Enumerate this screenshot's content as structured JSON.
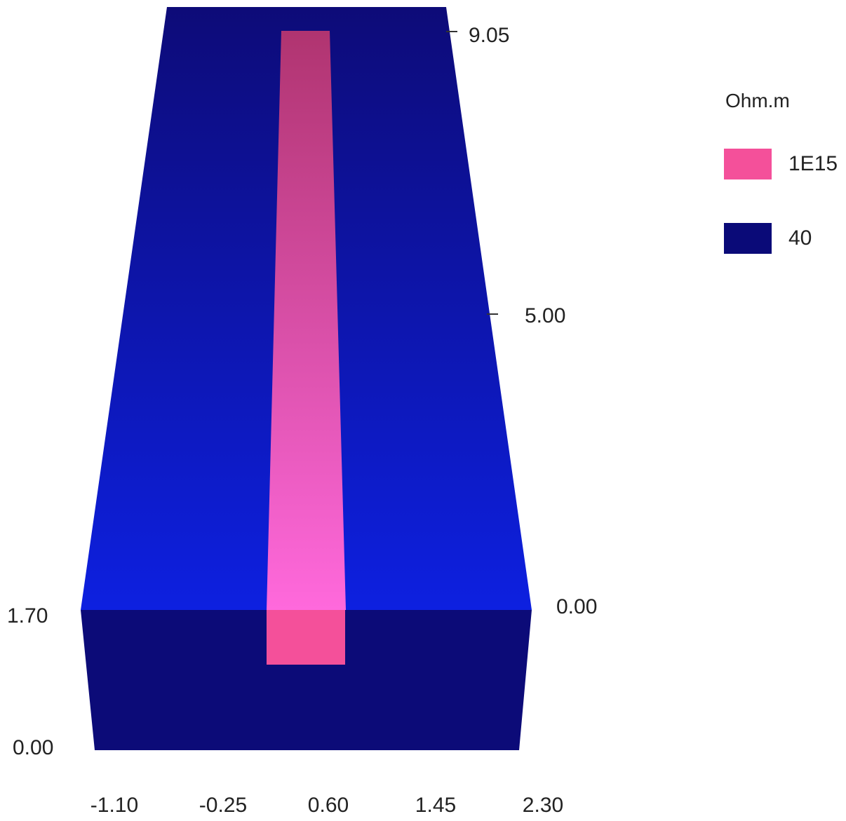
{
  "legend": {
    "title": "Ohm.m",
    "items": [
      {
        "label": "1E15",
        "color": "#f4509a"
      },
      {
        "label": "40",
        "color": "#0a0a78"
      }
    ]
  },
  "axes": {
    "x_ticks": [
      "-1.10",
      "-0.25",
      "0.60",
      "1.45",
      "2.30"
    ],
    "front_z_ticks": [
      "1.70",
      "0.00"
    ],
    "depth_ticks": [
      "9.05",
      "5.00",
      "0.00"
    ]
  },
  "colors": {
    "block_front": "#0c0b78",
    "block_top_far": "#0d0b78",
    "block_top_near": "#0d20e0",
    "prism_top_far": "#b03470",
    "prism_top_near": "#ff69dc",
    "prism_front": "#f4509a"
  }
}
